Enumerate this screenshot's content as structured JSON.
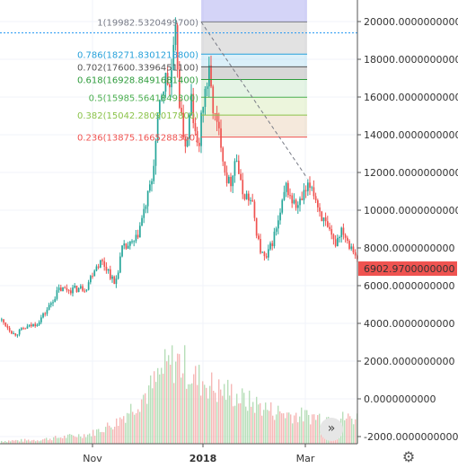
{
  "chart_data": {
    "type": "candlestick",
    "y_axis": {
      "ticks": [
        "20000.0000000000",
        "18000.0000000000",
        "16000.0000000000",
        "14000.0000000000",
        "12000.0000000000",
        "10000.0000000000",
        "8000.0000000000",
        "6000.0000000000",
        "4000.0000000000",
        "2000.0000000000",
        "0.0000000000",
        "-2000.0000000000"
      ],
      "tick_values": [
        20000,
        18000,
        16000,
        14000,
        12000,
        10000,
        8000,
        6000,
        4000,
        2000,
        0,
        -2000
      ],
      "range": [
        -2500,
        21000
      ]
    },
    "x_axis": {
      "ticks": [
        "Nov",
        "2018",
        "Mar"
      ]
    },
    "last_price": {
      "label": "6902.9700000000",
      "value": 6902.97,
      "color": "#ef5350"
    },
    "fib_levels": [
      {
        "label": "1(19982.5320499700)",
        "value": 19982.53,
        "color": "#787b86"
      },
      {
        "label": "0.786(18271.8301218800)",
        "value": 18271.83,
        "color": "#26a0da"
      },
      {
        "label": "0.702(17600.3396451100)",
        "value": 17600.34,
        "color": "#555555"
      },
      {
        "label": "0.618(16928.8491681400)",
        "value": 16928.85,
        "color": "#2e9c3c"
      },
      {
        "label": "0.5(15985.5641849300)",
        "value": 15985.56,
        "color": "#4caf50"
      },
      {
        "label": "0.382(15042.2809017800)",
        "value": 15042.28,
        "color": "#8bc34a"
      },
      {
        "label": "0.236(13875.1665288350)",
        "value": 13875.17,
        "color": "#ef5350"
      }
    ],
    "upper_band": {
      "value": 21000,
      "color": "#9fa0ee"
    },
    "crosshair_value": 19400,
    "trend_line": {
      "from": 19982.53,
      "to": 11700
    },
    "price_waypoints": [
      [
        0,
        4200
      ],
      [
        8,
        3800
      ],
      [
        15,
        3400
      ],
      [
        25,
        3700
      ],
      [
        40,
        4000
      ],
      [
        50,
        4600
      ],
      [
        65,
        5800
      ],
      [
        80,
        5800
      ],
      [
        95,
        5900
      ],
      [
        105,
        7000
      ],
      [
        112,
        7300
      ],
      [
        120,
        6800
      ],
      [
        127,
        6000
      ],
      [
        135,
        7900
      ],
      [
        150,
        8300
      ],
      [
        160,
        10000
      ],
      [
        168,
        11500
      ],
      [
        178,
        16000
      ],
      [
        184,
        17000
      ],
      [
        188,
        16500
      ],
      [
        195,
        19300
      ],
      [
        200,
        15000
      ],
      [
        207,
        13200
      ],
      [
        212,
        16000
      ],
      [
        216,
        14000
      ],
      [
        220,
        13200
      ],
      [
        226,
        16000
      ],
      [
        232,
        17200
      ],
      [
        236,
        15600
      ],
      [
        240,
        14500
      ],
      [
        245,
        13800
      ],
      [
        250,
        12000
      ],
      [
        255,
        11300
      ],
      [
        262,
        13000
      ],
      [
        268,
        11000
      ],
      [
        275,
        10700
      ],
      [
        280,
        10300
      ],
      [
        288,
        8000
      ],
      [
        295,
        7300
      ],
      [
        300,
        8000
      ],
      [
        310,
        9500
      ],
      [
        318,
        11300
      ],
      [
        323,
        10600
      ],
      [
        330,
        10100
      ],
      [
        338,
        10800
      ],
      [
        346,
        11400
      ],
      [
        352,
        10400
      ],
      [
        358,
        9600
      ],
      [
        365,
        8800
      ],
      [
        372,
        8200
      ],
      [
        380,
        9100
      ],
      [
        387,
        8300
      ],
      [
        393,
        8000
      ],
      [
        398,
        7100
      ]
    ],
    "volume_waypoints": [
      [
        0,
        -2250
      ],
      [
        40,
        -2200
      ],
      [
        100,
        -1900
      ],
      [
        130,
        -1300
      ],
      [
        150,
        -400
      ],
      [
        170,
        500
      ],
      [
        180,
        1200
      ],
      [
        195,
        1800
      ],
      [
        205,
        1500
      ],
      [
        215,
        900
      ],
      [
        230,
        700
      ],
      [
        240,
        300
      ],
      [
        255,
        200
      ],
      [
        270,
        -200
      ],
      [
        290,
        -500
      ],
      [
        300,
        -700
      ],
      [
        320,
        -900
      ],
      [
        340,
        -1000
      ],
      [
        360,
        -1050
      ],
      [
        380,
        -1100
      ],
      [
        398,
        -1100
      ]
    ]
  },
  "ui": {
    "forward_icon": "double-chevron-right-icon",
    "forward_glyph": "»",
    "settings_icon": "gear-icon",
    "settings_glyph": "⚙"
  }
}
